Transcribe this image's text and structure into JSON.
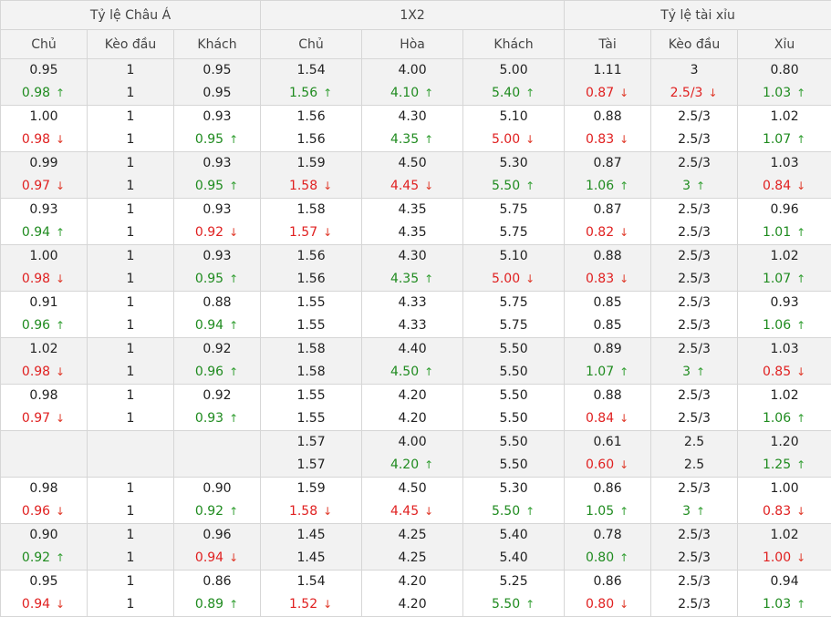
{
  "headers": {
    "groups": [
      "Tỷ lệ Châu Á",
      "1X2",
      "Tỷ lệ tài xỉu"
    ],
    "columns": [
      "Chủ",
      "Kèo đầu",
      "Khách",
      "Chủ",
      "Hòa",
      "Khách",
      "Tài",
      "Kèo đầu",
      "Xỉu"
    ]
  },
  "arrows": {
    "up": "↑",
    "down": "↓"
  },
  "colors": {
    "up": "#1f8b1f",
    "down": "#e02020",
    "alt_row": "#f2f2f2",
    "header_bg": "#f3f3f3",
    "border": "#d6d6d6"
  },
  "rows": [
    [
      [
        "0.95",
        "0.98",
        "up"
      ],
      [
        "1",
        "1",
        ""
      ],
      [
        "0.95",
        "0.95",
        ""
      ],
      [
        "1.54",
        "1.56",
        "up"
      ],
      [
        "4.00",
        "4.10",
        "up"
      ],
      [
        "5.00",
        "5.40",
        "up"
      ],
      [
        "1.11",
        "0.87",
        "down"
      ],
      [
        "3",
        "2.5/3",
        "down"
      ],
      [
        "0.80",
        "1.03",
        "up"
      ]
    ],
    [
      [
        "1.00",
        "0.98",
        "down"
      ],
      [
        "1",
        "1",
        ""
      ],
      [
        "0.93",
        "0.95",
        "up"
      ],
      [
        "1.56",
        "1.56",
        ""
      ],
      [
        "4.30",
        "4.35",
        "up"
      ],
      [
        "5.10",
        "5.00",
        "down"
      ],
      [
        "0.88",
        "0.83",
        "down"
      ],
      [
        "2.5/3",
        "2.5/3",
        ""
      ],
      [
        "1.02",
        "1.07",
        "up"
      ]
    ],
    [
      [
        "0.99",
        "0.97",
        "down"
      ],
      [
        "1",
        "1",
        ""
      ],
      [
        "0.93",
        "0.95",
        "up"
      ],
      [
        "1.59",
        "1.58",
        "down"
      ],
      [
        "4.50",
        "4.45",
        "down"
      ],
      [
        "5.30",
        "5.50",
        "up"
      ],
      [
        "0.87",
        "1.06",
        "up"
      ],
      [
        "2.5/3",
        "3",
        "up"
      ],
      [
        "1.03",
        "0.84",
        "down"
      ]
    ],
    [
      [
        "0.93",
        "0.94",
        "up"
      ],
      [
        "1",
        "1",
        ""
      ],
      [
        "0.93",
        "0.92",
        "down"
      ],
      [
        "1.58",
        "1.57",
        "down"
      ],
      [
        "4.35",
        "4.35",
        ""
      ],
      [
        "5.75",
        "5.75",
        ""
      ],
      [
        "0.87",
        "0.82",
        "down"
      ],
      [
        "2.5/3",
        "2.5/3",
        ""
      ],
      [
        "0.96",
        "1.01",
        "up"
      ]
    ],
    [
      [
        "1.00",
        "0.98",
        "down"
      ],
      [
        "1",
        "1",
        ""
      ],
      [
        "0.93",
        "0.95",
        "up"
      ],
      [
        "1.56",
        "1.56",
        ""
      ],
      [
        "4.30",
        "4.35",
        "up"
      ],
      [
        "5.10",
        "5.00",
        "down"
      ],
      [
        "0.88",
        "0.83",
        "down"
      ],
      [
        "2.5/3",
        "2.5/3",
        ""
      ],
      [
        "1.02",
        "1.07",
        "up"
      ]
    ],
    [
      [
        "0.91",
        "0.96",
        "up"
      ],
      [
        "1",
        "1",
        ""
      ],
      [
        "0.88",
        "0.94",
        "up"
      ],
      [
        "1.55",
        "1.55",
        ""
      ],
      [
        "4.33",
        "4.33",
        ""
      ],
      [
        "5.75",
        "5.75",
        ""
      ],
      [
        "0.85",
        "0.85",
        ""
      ],
      [
        "2.5/3",
        "2.5/3",
        ""
      ],
      [
        "0.93",
        "1.06",
        "up"
      ]
    ],
    [
      [
        "1.02",
        "0.98",
        "down"
      ],
      [
        "1",
        "1",
        ""
      ],
      [
        "0.92",
        "0.96",
        "up"
      ],
      [
        "1.58",
        "1.58",
        ""
      ],
      [
        "4.40",
        "4.50",
        "up"
      ],
      [
        "5.50",
        "5.50",
        ""
      ],
      [
        "0.89",
        "1.07",
        "up"
      ],
      [
        "2.5/3",
        "3",
        "up"
      ],
      [
        "1.03",
        "0.85",
        "down"
      ]
    ],
    [
      [
        "0.98",
        "0.97",
        "down"
      ],
      [
        "1",
        "1",
        ""
      ],
      [
        "0.92",
        "0.93",
        "up"
      ],
      [
        "1.55",
        "1.55",
        ""
      ],
      [
        "4.20",
        "4.20",
        ""
      ],
      [
        "5.50",
        "5.50",
        ""
      ],
      [
        "0.88",
        "0.84",
        "down"
      ],
      [
        "2.5/3",
        "2.5/3",
        ""
      ],
      [
        "1.02",
        "1.06",
        "up"
      ]
    ],
    [
      [
        "",
        "",
        ""
      ],
      [
        "",
        "",
        ""
      ],
      [
        "",
        "",
        ""
      ],
      [
        "1.57",
        "1.57",
        ""
      ],
      [
        "4.00",
        "4.20",
        "up"
      ],
      [
        "5.50",
        "5.50",
        ""
      ],
      [
        "0.61",
        "0.60",
        "down"
      ],
      [
        "2.5",
        "2.5",
        ""
      ],
      [
        "1.20",
        "1.25",
        "up"
      ]
    ],
    [
      [
        "0.98",
        "0.96",
        "down"
      ],
      [
        "1",
        "1",
        ""
      ],
      [
        "0.90",
        "0.92",
        "up"
      ],
      [
        "1.59",
        "1.58",
        "down"
      ],
      [
        "4.50",
        "4.45",
        "down"
      ],
      [
        "5.30",
        "5.50",
        "up"
      ],
      [
        "0.86",
        "1.05",
        "up"
      ],
      [
        "2.5/3",
        "3",
        "up"
      ],
      [
        "1.00",
        "0.83",
        "down"
      ]
    ],
    [
      [
        "0.90",
        "0.92",
        "up"
      ],
      [
        "1",
        "1",
        ""
      ],
      [
        "0.96",
        "0.94",
        "down"
      ],
      [
        "1.45",
        "1.45",
        ""
      ],
      [
        "4.25",
        "4.25",
        ""
      ],
      [
        "5.40",
        "5.40",
        ""
      ],
      [
        "0.78",
        "0.80",
        "up"
      ],
      [
        "2.5/3",
        "2.5/3",
        ""
      ],
      [
        "1.02",
        "1.00",
        "down"
      ]
    ],
    [
      [
        "0.95",
        "0.94",
        "down"
      ],
      [
        "1",
        "1",
        ""
      ],
      [
        "0.86",
        "0.89",
        "up"
      ],
      [
        "1.54",
        "1.52",
        "down"
      ],
      [
        "4.20",
        "4.20",
        ""
      ],
      [
        "5.25",
        "5.50",
        "up"
      ],
      [
        "0.86",
        "0.80",
        "down"
      ],
      [
        "2.5/3",
        "2.5/3",
        ""
      ],
      [
        "0.94",
        "1.03",
        "up"
      ]
    ]
  ]
}
